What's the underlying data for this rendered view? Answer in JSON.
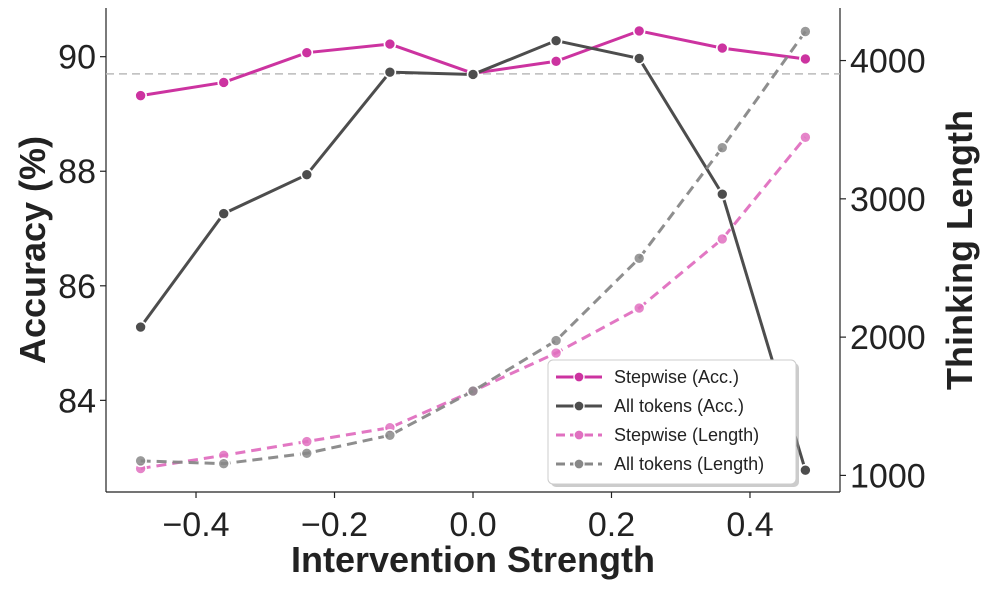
{
  "chart_data": {
    "type": "line",
    "xlabel": "Intervention Strength",
    "ylabel": "Accuracy (%)",
    "y2label": "Thinking Length",
    "xlim": [
      -0.53,
      0.53
    ],
    "ylim": [
      82.4,
      90.85
    ],
    "y2lim": [
      880,
      4380
    ],
    "xticks": [
      -0.4,
      -0.2,
      0.0,
      0.2,
      0.4
    ],
    "xtick_labels": [
      "−0.4",
      "−0.2",
      "0.0",
      "0.2",
      "0.4"
    ],
    "yticks": [
      84,
      86,
      88,
      90
    ],
    "ytick_labels": [
      "84",
      "86",
      "88",
      "90"
    ],
    "y2ticks": [
      1000,
      2000,
      3000,
      4000
    ],
    "y2tick_labels": [
      "1000",
      "2000",
      "3000",
      "4000"
    ],
    "reference_line": {
      "axis": "y",
      "value": 89.7,
      "style": "dashed",
      "color": "#bbbbbb"
    },
    "grid": false,
    "legend_position": "lower-right",
    "x": [
      -0.48,
      -0.36,
      -0.24,
      -0.12,
      0.0,
      0.12,
      0.24,
      0.36,
      0.48
    ],
    "series": [
      {
        "name": "Stepwise (Acc.)",
        "axis": "left",
        "color": "#cc33a0",
        "style": "solid",
        "values": [
          89.32,
          89.55,
          90.07,
          90.22,
          89.71,
          89.92,
          90.45,
          90.15,
          89.96
        ]
      },
      {
        "name": "All tokens (Acc.)",
        "axis": "left",
        "color": "#4d4d4d",
        "style": "solid",
        "values": [
          85.28,
          87.26,
          87.94,
          89.73,
          89.69,
          90.28,
          89.97,
          87.6,
          82.78
        ]
      },
      {
        "name": "Stepwise (Length)",
        "axis": "right",
        "color": "#e070c0",
        "style": "dashed",
        "values": [
          1050,
          1145,
          1245,
          1345,
          1610,
          1885,
          2210,
          2710,
          3445
        ]
      },
      {
        "name": "All tokens (Length)",
        "axis": "right",
        "color": "#888888",
        "style": "dashed",
        "values": [
          1105,
          1085,
          1160,
          1290,
          1610,
          1975,
          2570,
          3370,
          4210
        ]
      }
    ]
  }
}
